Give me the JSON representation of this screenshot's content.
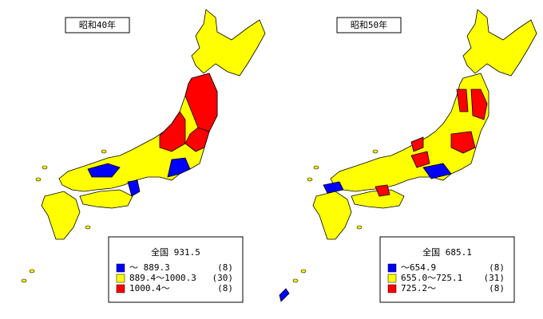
{
  "panels": [
    {
      "title": "昭和40年",
      "national": "全国 931.5",
      "legend": [
        {
          "color": "#0000ff",
          "range": "～ 889.3",
          "count": "(8)"
        },
        {
          "color": "#ffff00",
          "range": "889.4～1000.3",
          "count": "(30)"
        },
        {
          "color": "#ff0000",
          "range": "1000.4～",
          "count": "(8)"
        }
      ]
    },
    {
      "title": "昭和50年",
      "national": "全国 685.1",
      "legend": [
        {
          "color": "#0000ff",
          "range": "～654.9",
          "count": "(8)"
        },
        {
          "color": "#ffff00",
          "range": "655.0～725.1",
          "count": "(31)"
        },
        {
          "color": "#ff0000",
          "range": "725.2～",
          "count": "(8)"
        }
      ]
    }
  ]
}
